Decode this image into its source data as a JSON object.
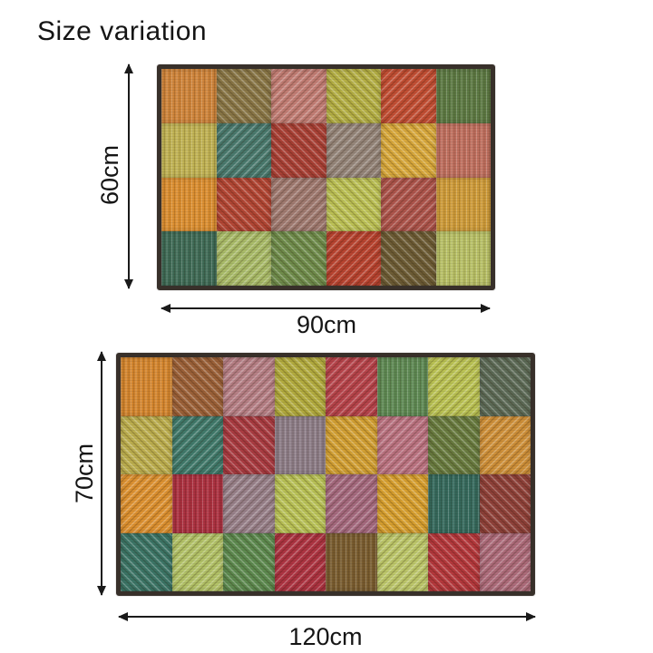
{
  "title": "Size variation",
  "rugs": [
    {
      "name": "rug-90x60",
      "height_label": "60cm",
      "width_label": "90cm",
      "rows": 4,
      "cols": 6,
      "border_color": "#38302a",
      "cells": [
        "#d0853b",
        "#8a7747",
        "#c27d74",
        "#b5b045",
        "#c24e33",
        "#5d7a44",
        "#c1b354",
        "#49796d",
        "#aa4136",
        "#958579",
        "#d9a93c",
        "#c0705f",
        "#dc8f31",
        "#b34634",
        "#a07a70",
        "#bcc155",
        "#ad544b",
        "#cf9c3a",
        "#3f6b56",
        "#a9bb68",
        "#6f8c4b",
        "#b8432f",
        "#6d5c35",
        "#b9c167"
      ]
    },
    {
      "name": "rug-120x70",
      "height_label": "70cm",
      "width_label": "120cm",
      "rows": 4,
      "cols": 8,
      "border_color": "#38302a",
      "cells": [
        "#d6872f",
        "#9c6138",
        "#b67f85",
        "#b2ab3e",
        "#b7444b",
        "#5f8a54",
        "#bac253",
        "#5d6b57",
        "#bcae4e",
        "#40796a",
        "#a93b41",
        "#8e7e88",
        "#d3a033",
        "#bb7381",
        "#697c40",
        "#cf9039",
        "#dd9130",
        "#ac3140",
        "#988089",
        "#b9c256",
        "#a5697e",
        "#d8a02f",
        "#366a5d",
        "#8f4139",
        "#3b7465",
        "#b2c267",
        "#5d8a4f",
        "#ad3341",
        "#7a5d30",
        "#bcc669",
        "#b5383c",
        "#ad6b7a"
      ]
    }
  ]
}
